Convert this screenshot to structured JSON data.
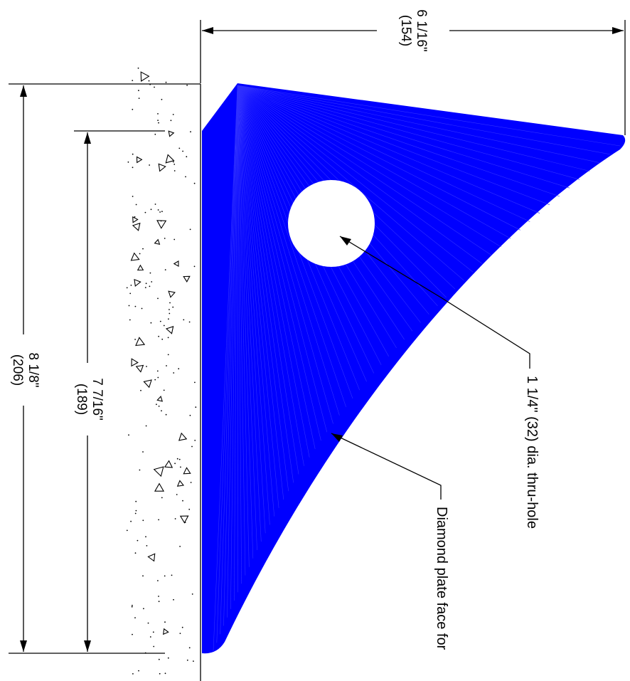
{
  "dimensions": {
    "width_top": {
      "imperial": "6 1/16\"",
      "metric": "(154)"
    },
    "outer_height": {
      "imperial": "8 1/8\"",
      "metric": "(206)"
    },
    "inner_height": {
      "imperial": "7 7/16\"",
      "metric": "(189)"
    }
  },
  "callouts": {
    "hole": "1 1/4\" (32) dia. thru-hole",
    "face": "Diamond plate face for"
  },
  "colors": {
    "plate": "#0000ff",
    "line": "#000000",
    "background": "#ffffff"
  }
}
